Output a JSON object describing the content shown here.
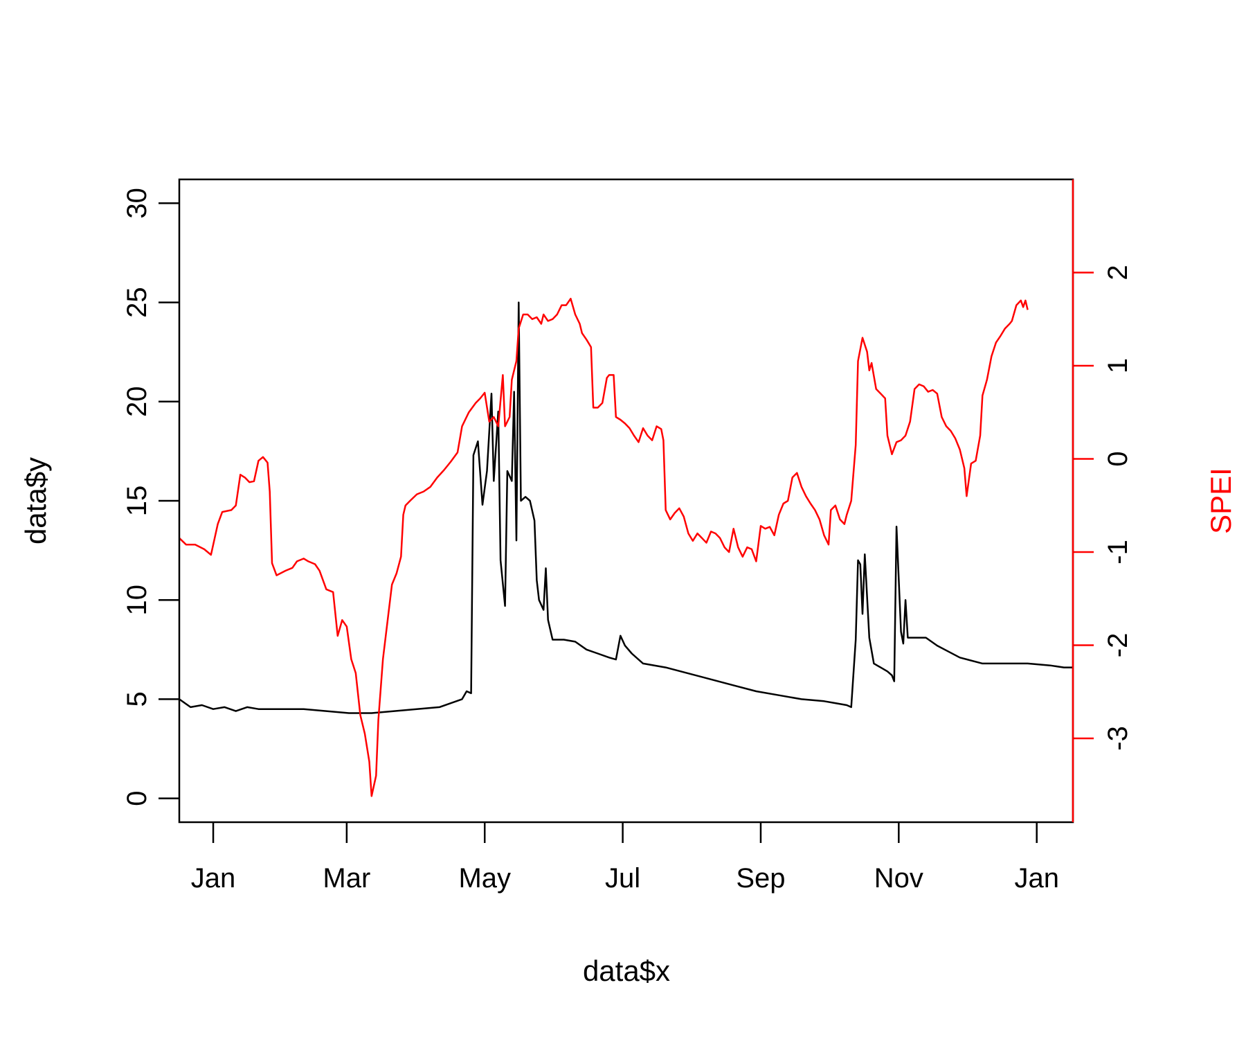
{
  "chart_data": {
    "type": "line",
    "xlabel": "data$x",
    "ylabel": "data$y",
    "y2label": "SPEI",
    "x_tick_labels": [
      "Jan",
      "Mar",
      "May",
      "Jul",
      "Sep",
      "Nov",
      "Jan"
    ],
    "x_tick_positions": [
      -10,
      49,
      110,
      171,
      232,
      293,
      354
    ],
    "xlim": [
      -25,
      370
    ],
    "ylim": [
      -1.2,
      31.2
    ],
    "y_ticks": [
      0,
      5,
      10,
      15,
      20,
      25,
      30
    ],
    "y2lim": [
      -3.9,
      3.0
    ],
    "y2_ticks": [
      -3,
      -2,
      -1,
      0,
      1,
      2
    ],
    "colors": {
      "series_black": "#000000",
      "series_red": "#ff0000",
      "axis_right": "#ff0000"
    },
    "series": [
      {
        "axis": "left",
        "color": "#000000",
        "points": [
          [
            -25,
            5.0
          ],
          [
            -20,
            4.6
          ],
          [
            -15,
            4.7
          ],
          [
            -10,
            4.5
          ],
          [
            -5,
            4.6
          ],
          [
            0,
            4.4
          ],
          [
            5,
            4.6
          ],
          [
            10,
            4.5
          ],
          [
            20,
            4.5
          ],
          [
            30,
            4.5
          ],
          [
            40,
            4.4
          ],
          [
            50,
            4.3
          ],
          [
            60,
            4.3
          ],
          [
            70,
            4.4
          ],
          [
            80,
            4.5
          ],
          [
            90,
            4.6
          ],
          [
            100,
            5.0
          ],
          [
            102,
            5.4
          ],
          [
            104,
            5.3
          ],
          [
            105,
            17.3
          ],
          [
            107,
            18.0
          ],
          [
            109,
            14.8
          ],
          [
            111,
            16.5
          ],
          [
            113,
            20.4
          ],
          [
            114,
            16.0
          ],
          [
            116,
            19.5
          ],
          [
            117,
            12.0
          ],
          [
            119,
            9.7
          ],
          [
            120,
            16.5
          ],
          [
            122,
            16.0
          ],
          [
            123,
            20.5
          ],
          [
            124,
            13.0
          ],
          [
            125,
            25.0
          ],
          [
            126,
            15.0
          ],
          [
            128,
            15.2
          ],
          [
            130,
            15.0
          ],
          [
            132,
            14.0
          ],
          [
            133,
            11.0
          ],
          [
            134,
            10.0
          ],
          [
            136,
            9.5
          ],
          [
            137,
            11.6
          ],
          [
            138,
            9.0
          ],
          [
            140,
            8.0
          ],
          [
            145,
            8.0
          ],
          [
            150,
            7.9
          ],
          [
            155,
            7.5
          ],
          [
            160,
            7.3
          ],
          [
            165,
            7.1
          ],
          [
            168,
            7.0
          ],
          [
            170,
            8.2
          ],
          [
            172,
            7.7
          ],
          [
            175,
            7.3
          ],
          [
            180,
            6.8
          ],
          [
            190,
            6.6
          ],
          [
            200,
            6.3
          ],
          [
            210,
            6.0
          ],
          [
            220,
            5.7
          ],
          [
            230,
            5.4
          ],
          [
            240,
            5.2
          ],
          [
            250,
            5.0
          ],
          [
            260,
            4.9
          ],
          [
            265,
            4.8
          ],
          [
            270,
            4.7
          ],
          [
            272,
            4.6
          ],
          [
            274,
            8.0
          ],
          [
            275,
            12.0
          ],
          [
            276,
            11.8
          ],
          [
            277,
            9.3
          ],
          [
            278,
            12.3
          ],
          [
            280,
            8.1
          ],
          [
            282,
            6.8
          ],
          [
            285,
            6.6
          ],
          [
            288,
            6.4
          ],
          [
            290,
            6.2
          ],
          [
            291,
            5.9
          ],
          [
            292,
            13.7
          ],
          [
            294,
            8.4
          ],
          [
            295,
            7.8
          ],
          [
            296,
            10.0
          ],
          [
            297,
            8.1
          ],
          [
            300,
            8.1
          ],
          [
            305,
            8.1
          ],
          [
            310,
            7.7
          ],
          [
            315,
            7.4
          ],
          [
            320,
            7.1
          ],
          [
            330,
            6.8
          ],
          [
            340,
            6.8
          ],
          [
            350,
            6.8
          ],
          [
            360,
            6.7
          ],
          [
            366,
            6.6
          ],
          [
            370,
            6.6
          ]
        ]
      },
      {
        "axis": "right",
        "color": "#ff0000",
        "points": [
          [
            -25,
            -0.85
          ],
          [
            -22,
            -0.92
          ],
          [
            -18,
            -0.92
          ],
          [
            -14,
            -0.97
          ],
          [
            -11,
            -1.03
          ],
          [
            -8,
            -0.7
          ],
          [
            -6,
            -0.57
          ],
          [
            -2,
            -0.55
          ],
          [
            0,
            -0.5
          ],
          [
            2,
            -0.17
          ],
          [
            4,
            -0.2
          ],
          [
            6,
            -0.25
          ],
          [
            8,
            -0.24
          ],
          [
            10,
            -0.02
          ],
          [
            12,
            0.02
          ],
          [
            14,
            -0.04
          ],
          [
            15,
            -0.35
          ],
          [
            16,
            -1.12
          ],
          [
            18,
            -1.25
          ],
          [
            22,
            -1.2
          ],
          [
            25,
            -1.17
          ],
          [
            27,
            -1.1
          ],
          [
            30,
            -1.07
          ],
          [
            32,
            -1.1
          ],
          [
            35,
            -1.13
          ],
          [
            37,
            -1.2
          ],
          [
            40,
            -1.4
          ],
          [
            43,
            -1.43
          ],
          [
            45,
            -1.9
          ],
          [
            47,
            -1.73
          ],
          [
            49,
            -1.8
          ],
          [
            51,
            -2.15
          ],
          [
            53,
            -2.3
          ],
          [
            55,
            -2.75
          ],
          [
            57,
            -2.95
          ],
          [
            59,
            -3.25
          ],
          [
            60,
            -3.62
          ],
          [
            62,
            -3.4
          ],
          [
            63,
            -2.8
          ],
          [
            65,
            -2.15
          ],
          [
            67,
            -1.75
          ],
          [
            69,
            -1.35
          ],
          [
            71,
            -1.23
          ],
          [
            73,
            -1.05
          ],
          [
            74,
            -0.6
          ],
          [
            75,
            -0.5
          ],
          [
            77,
            -0.45
          ],
          [
            80,
            -0.38
          ],
          [
            83,
            -0.35
          ],
          [
            86,
            -0.3
          ],
          [
            89,
            -0.2
          ],
          [
            92,
            -0.12
          ],
          [
            95,
            -0.03
          ],
          [
            98,
            0.07
          ],
          [
            100,
            0.35
          ],
          [
            103,
            0.5
          ],
          [
            106,
            0.6
          ],
          [
            108,
            0.65
          ],
          [
            110,
            0.71
          ],
          [
            112,
            0.4
          ],
          [
            114,
            0.45
          ],
          [
            116,
            0.35
          ],
          [
            118,
            0.9
          ],
          [
            119,
            0.35
          ],
          [
            121,
            0.45
          ],
          [
            122,
            0.85
          ],
          [
            123,
            0.95
          ],
          [
            124,
            1.05
          ],
          [
            125,
            1.4
          ],
          [
            127,
            1.55
          ],
          [
            129,
            1.55
          ],
          [
            131,
            1.5
          ],
          [
            133,
            1.52
          ],
          [
            135,
            1.45
          ],
          [
            136,
            1.55
          ],
          [
            138,
            1.48
          ],
          [
            140,
            1.5
          ],
          [
            142,
            1.55
          ],
          [
            144,
            1.65
          ],
          [
            146,
            1.65
          ],
          [
            148,
            1.72
          ],
          [
            150,
            1.55
          ],
          [
            152,
            1.45
          ],
          [
            153,
            1.35
          ],
          [
            155,
            1.28
          ],
          [
            157,
            1.2
          ],
          [
            158,
            0.55
          ],
          [
            160,
            0.55
          ],
          [
            162,
            0.6
          ],
          [
            164,
            0.87
          ],
          [
            165,
            0.9
          ],
          [
            167,
            0.9
          ],
          [
            168,
            0.45
          ],
          [
            170,
            0.42
          ],
          [
            172,
            0.38
          ],
          [
            174,
            0.33
          ],
          [
            176,
            0.25
          ],
          [
            178,
            0.18
          ],
          [
            180,
            0.33
          ],
          [
            182,
            0.25
          ],
          [
            184,
            0.2
          ],
          [
            186,
            0.35
          ],
          [
            188,
            0.32
          ],
          [
            189,
            0.2
          ],
          [
            190,
            -0.55
          ],
          [
            192,
            -0.65
          ],
          [
            194,
            -0.58
          ],
          [
            196,
            -0.53
          ],
          [
            198,
            -0.62
          ],
          [
            200,
            -0.8
          ],
          [
            202,
            -0.88
          ],
          [
            204,
            -0.8
          ],
          [
            206,
            -0.85
          ],
          [
            208,
            -0.9
          ],
          [
            210,
            -0.78
          ],
          [
            212,
            -0.8
          ],
          [
            214,
            -0.85
          ],
          [
            216,
            -0.95
          ],
          [
            218,
            -1.0
          ],
          [
            220,
            -0.75
          ],
          [
            222,
            -0.95
          ],
          [
            224,
            -1.05
          ],
          [
            226,
            -0.95
          ],
          [
            228,
            -0.97
          ],
          [
            230,
            -1.1
          ],
          [
            232,
            -0.72
          ],
          [
            234,
            -0.75
          ],
          [
            236,
            -0.73
          ],
          [
            238,
            -0.82
          ],
          [
            240,
            -0.6
          ],
          [
            242,
            -0.48
          ],
          [
            244,
            -0.45
          ],
          [
            246,
            -0.2
          ],
          [
            248,
            -0.15
          ],
          [
            250,
            -0.3
          ],
          [
            252,
            -0.4
          ],
          [
            254,
            -0.48
          ],
          [
            256,
            -0.55
          ],
          [
            258,
            -0.65
          ],
          [
            260,
            -0.82
          ],
          [
            262,
            -0.92
          ],
          [
            263,
            -0.55
          ],
          [
            265,
            -0.5
          ],
          [
            267,
            -0.65
          ],
          [
            269,
            -0.7
          ],
          [
            270,
            -0.6
          ],
          [
            272,
            -0.45
          ],
          [
            274,
            0.15
          ],
          [
            275,
            1.05
          ],
          [
            277,
            1.3
          ],
          [
            279,
            1.15
          ],
          [
            280,
            0.95
          ],
          [
            281,
            1.03
          ],
          [
            283,
            0.75
          ],
          [
            285,
            0.7
          ],
          [
            287,
            0.65
          ],
          [
            288,
            0.25
          ],
          [
            290,
            0.05
          ],
          [
            292,
            0.18
          ],
          [
            294,
            0.2
          ],
          [
            296,
            0.25
          ],
          [
            298,
            0.4
          ],
          [
            300,
            0.75
          ],
          [
            302,
            0.8
          ],
          [
            304,
            0.78
          ],
          [
            306,
            0.72
          ],
          [
            308,
            0.74
          ],
          [
            310,
            0.7
          ],
          [
            312,
            0.45
          ],
          [
            314,
            0.35
          ],
          [
            316,
            0.3
          ],
          [
            318,
            0.22
          ],
          [
            320,
            0.1
          ],
          [
            322,
            -0.1
          ],
          [
            323,
            -0.4
          ],
          [
            325,
            -0.05
          ],
          [
            327,
            -0.02
          ],
          [
            329,
            0.25
          ],
          [
            330,
            0.68
          ],
          [
            332,
            0.85
          ],
          [
            334,
            1.1
          ],
          [
            336,
            1.25
          ],
          [
            338,
            1.32
          ],
          [
            340,
            1.4
          ],
          [
            342,
            1.45
          ],
          [
            343,
            1.48
          ],
          [
            345,
            1.65
          ],
          [
            347,
            1.7
          ],
          [
            348,
            1.63
          ],
          [
            349,
            1.7
          ],
          [
            350,
            1.6
          ]
        ]
      }
    ]
  }
}
